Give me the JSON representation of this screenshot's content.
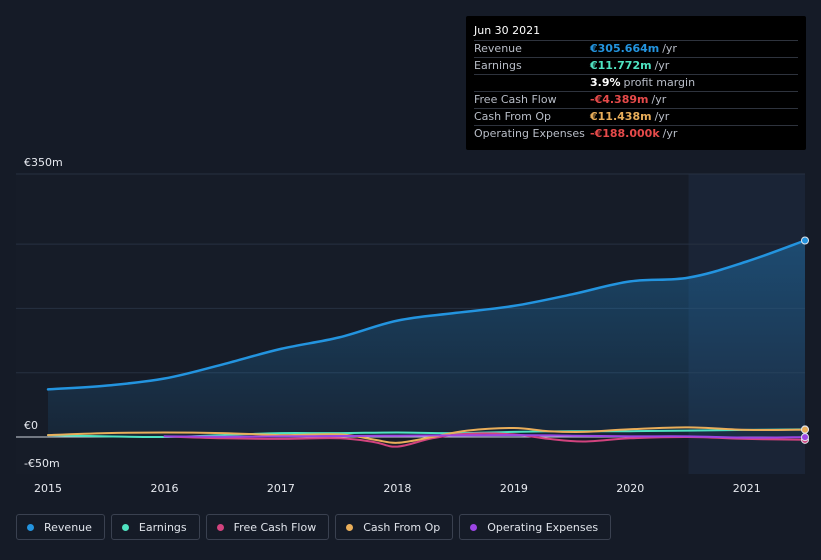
{
  "colors": {
    "revenue": "#2394df",
    "earnings": "#4fe3c1",
    "free_cash_flow": "#d2437e",
    "cash_from_op": "#e9ae5a",
    "operating_expenses": "#9b45e4"
  },
  "tooltip": {
    "date": "Jun 30 2021",
    "rows": [
      {
        "label": "Revenue",
        "value": "€305.664m",
        "unit": "/yr",
        "color": "#2394df"
      },
      {
        "label": "Earnings",
        "value": "€11.772m",
        "unit": "/yr",
        "color": "#4fe3c1"
      },
      {
        "label": "",
        "value": "3.9%",
        "unit": "profit margin",
        "color": "#ffffff"
      },
      {
        "label": "Free Cash Flow",
        "value": "-€4.389m",
        "unit": "/yr",
        "color": "#e64a4a"
      },
      {
        "label": "Cash From Op",
        "value": "€11.438m",
        "unit": "/yr",
        "color": "#e9ae5a"
      },
      {
        "label": "Operating Expenses",
        "value": "-€188.000k",
        "unit": "/yr",
        "color": "#e64a4a"
      }
    ]
  },
  "legend": [
    {
      "label": "Revenue",
      "color": "#2394df"
    },
    {
      "label": "Earnings",
      "color": "#4fe3c1"
    },
    {
      "label": "Free Cash Flow",
      "color": "#d2437e"
    },
    {
      "label": "Cash From Op",
      "color": "#e9ae5a"
    },
    {
      "label": "Operating Expenses",
      "color": "#9b45e4"
    }
  ],
  "chart_data": {
    "type": "line",
    "y_tick_labels": [
      "€350m",
      "€0",
      "-€50m"
    ],
    "ylim": [
      -50,
      350
    ],
    "x_tick_labels": [
      "2015",
      "2016",
      "2017",
      "2018",
      "2019",
      "2020",
      "2021"
    ],
    "xlim": [
      2015.0,
      2021.5
    ],
    "forecast_shade_from": 2020.5,
    "series": [
      {
        "name": "Revenue",
        "key": "revenue",
        "x": [
          2015.0,
          2015.5,
          2016.0,
          2016.5,
          2017.0,
          2017.5,
          2018.0,
          2018.5,
          2019.0,
          2019.5,
          2020.0,
          2020.5,
          2021.0,
          2021.5
        ],
        "y": [
          74,
          80,
          91,
          113,
          137,
          155,
          181,
          193,
          204,
          222,
          242,
          248,
          273,
          305.664
        ]
      },
      {
        "name": "Earnings",
        "key": "earnings",
        "x": [
          2015.0,
          2015.5,
          2016.0,
          2016.5,
          2017.0,
          2017.5,
          2018.0,
          2018.5,
          2019.0,
          2019.5,
          2020.0,
          2020.5,
          2021.0,
          2021.5
        ],
        "y": [
          3,
          1,
          0,
          3,
          6,
          6,
          7,
          6,
          8,
          9,
          9,
          10,
          11,
          11.772
        ]
      },
      {
        "name": "Free Cash Flow",
        "key": "free_cash_flow",
        "x": [
          2016.0,
          2016.5,
          2017.0,
          2017.5,
          2017.8,
          2018.0,
          2018.3,
          2018.6,
          2019.0,
          2019.3,
          2019.6,
          2020.0,
          2020.5,
          2021.0,
          2021.5
        ],
        "y": [
          1,
          -2,
          -3,
          -2,
          -8,
          -15,
          -2,
          5,
          4,
          -3,
          -7,
          -2,
          0,
          -3,
          -4.389
        ]
      },
      {
        "name": "Cash From Op",
        "key": "cash_from_op",
        "x": [
          2015.0,
          2015.5,
          2016.0,
          2016.5,
          2017.0,
          2017.5,
          2017.8,
          2018.0,
          2018.3,
          2018.6,
          2019.0,
          2019.3,
          2019.6,
          2020.0,
          2020.5,
          2021.0,
          2021.5
        ],
        "y": [
          3,
          6,
          7,
          6,
          3,
          4,
          -4,
          -9,
          0,
          10,
          14,
          9,
          8,
          12,
          15,
          11,
          11.438
        ]
      },
      {
        "name": "Operating Expenses",
        "key": "operating_expenses",
        "x": [
          2016.0,
          2016.5,
          2017.0,
          2017.5,
          2018.0,
          2018.5,
          2019.0,
          2019.5,
          2020.0,
          2020.5,
          2021.0,
          2021.5
        ],
        "y": [
          1,
          0.5,
          1,
          1.5,
          2,
          2.5,
          3,
          2,
          1,
          1,
          -1,
          -0.188
        ]
      }
    ]
  }
}
